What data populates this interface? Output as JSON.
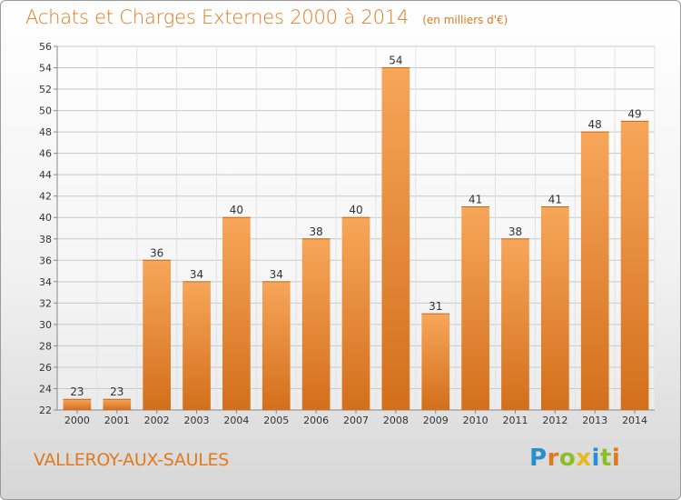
{
  "header": {
    "title": "Achats et Charges Externes 2000 à 2014",
    "unit": "(en milliers d'€)"
  },
  "footer": {
    "commune": "VALLEROY-AUX-SAULES",
    "logo_letters": [
      {
        "ch": "P",
        "color": "#2a8fd1"
      },
      {
        "ch": "r",
        "color": "#e07a1f"
      },
      {
        "ch": "o",
        "color": "#8cbf26"
      },
      {
        "ch": "x",
        "color": "#e8b81c"
      },
      {
        "ch": "i",
        "color": "#2a8fd1"
      },
      {
        "ch": "t",
        "color": "#8cbf26"
      },
      {
        "ch": "i",
        "color": "#e07a1f"
      }
    ]
  },
  "colors": {
    "bar_light": "#f7a65a",
    "bar_dark": "#d36f1b",
    "accent": "#e07a1f"
  },
  "chart_data": {
    "type": "bar",
    "categories": [
      "2000",
      "2001",
      "2002",
      "2003",
      "2004",
      "2005",
      "2006",
      "2007",
      "2008",
      "2009",
      "2010",
      "2011",
      "2012",
      "2013",
      "2014"
    ],
    "values": [
      23,
      23,
      36,
      34,
      40,
      34,
      38,
      40,
      54,
      31,
      41,
      38,
      41,
      48,
      49
    ],
    "ylim": [
      22,
      56
    ],
    "yticks": [
      22,
      24,
      26,
      28,
      30,
      32,
      34,
      36,
      38,
      40,
      42,
      44,
      46,
      48,
      50,
      52,
      54,
      56
    ],
    "grid": true,
    "legend": "none"
  }
}
